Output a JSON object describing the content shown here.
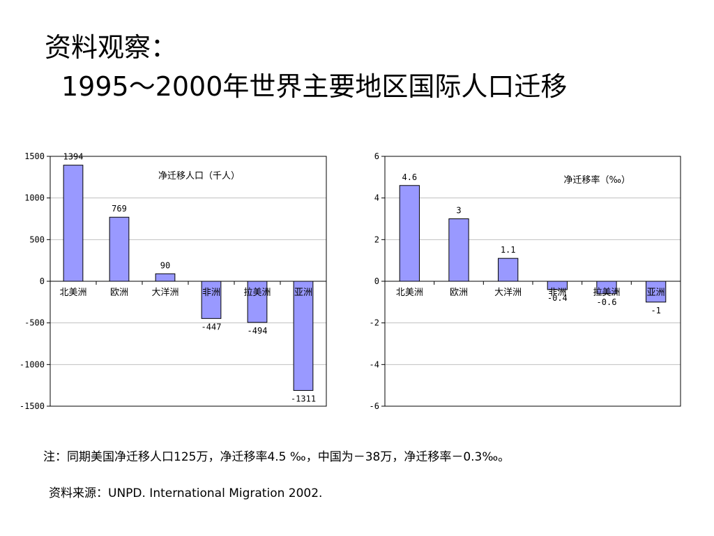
{
  "title": {
    "line1": "资料观察：",
    "line2": "1995～2000年世界主要地区国际人口迁移"
  },
  "note": "注：同期美国净迁移人口125万，净迁移率4.5 ‰，中国为－38万，净迁移率－0.3‰。",
  "source": "资料来源：UNPD. International Migration 2002.",
  "colors": {
    "bar_fill": "#9999ff",
    "bar_stroke": "#000000",
    "gridline": "#c0c0c0",
    "axis": "#000000"
  },
  "chart_data": [
    {
      "type": "bar",
      "title": "",
      "legend_label": "净迁移人口（千人）",
      "xlabel": "",
      "ylabel": "",
      "categories": [
        "北美洲",
        "欧洲",
        "大洋洲",
        "非洲",
        "拉美洲",
        "亚洲"
      ],
      "values": [
        1394,
        769,
        90,
        -447,
        -494,
        -1311
      ],
      "value_labels": [
        "1394",
        "769",
        "90",
        "-447",
        "-494",
        "-1311"
      ],
      "ylim": [
        -1500,
        1500
      ],
      "yticks": [
        1500,
        1000,
        500,
        0,
        -500,
        -1000,
        -1500
      ],
      "ytick_labels": [
        "1500",
        "1000",
        "500",
        "0",
        "-500",
        "-1000",
        "-1500"
      ],
      "grid": true,
      "legend_position": "top-right"
    },
    {
      "type": "bar",
      "title": "",
      "legend_label": "净迁移率（‰）",
      "xlabel": "",
      "ylabel": "",
      "categories": [
        "北美洲",
        "欧洲",
        "大洋洲",
        "非洲",
        "拉美洲",
        "亚洲"
      ],
      "values": [
        4.6,
        3,
        1.1,
        -0.4,
        -0.6,
        -1
      ],
      "value_labels": [
        "4.6",
        "3",
        "1.1",
        "-0.4",
        "-0.6",
        "-1"
      ],
      "ylim": [
        -6,
        6
      ],
      "yticks": [
        6,
        4,
        2,
        0,
        -2,
        -4,
        -6
      ],
      "ytick_labels": [
        "6",
        "4",
        "2",
        "0",
        "-2",
        "-4",
        "-6"
      ],
      "grid": true,
      "legend_position": "top-right"
    }
  ]
}
